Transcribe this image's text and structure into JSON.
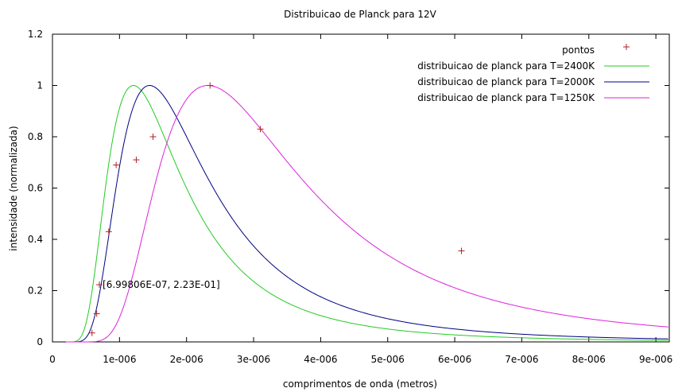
{
  "chart_data": {
    "type": "line",
    "title": "Distribuicao de Planck para 12V",
    "xlabel": "comprimentos de onda (metros)",
    "ylabel": "intensidade (normalizada)",
    "xlim": [
      0,
      9.2e-06
    ],
    "ylim": [
      0,
      1.2
    ],
    "xticks": [
      {
        "value": 0,
        "label": "0"
      },
      {
        "value": 1e-06,
        "label": "1e-006"
      },
      {
        "value": 2e-06,
        "label": "2e-006"
      },
      {
        "value": 3e-06,
        "label": "3e-006"
      },
      {
        "value": 4e-06,
        "label": "4e-006"
      },
      {
        "value": 5e-06,
        "label": "5e-006"
      },
      {
        "value": 6e-06,
        "label": "6e-006"
      },
      {
        "value": 7e-06,
        "label": "7e-006"
      },
      {
        "value": 8e-06,
        "label": "8e-006"
      },
      {
        "value": 9e-06,
        "label": "9e-006"
      }
    ],
    "yticks": [
      {
        "value": 0,
        "label": "0"
      },
      {
        "value": 0.2,
        "label": "0.2"
      },
      {
        "value": 0.4,
        "label": "0.4"
      },
      {
        "value": 0.6,
        "label": "0.6"
      },
      {
        "value": 0.8,
        "label": "0.8"
      },
      {
        "value": 1.0,
        "label": "1"
      },
      {
        "value": 1.2,
        "label": "1.2"
      }
    ],
    "grid": false,
    "legend_position": "top-right",
    "points": {
      "name": "pontos",
      "color": "#b22222",
      "marker": "plus",
      "x": [
        5.9e-07,
        6.6e-07,
        6.99806e-07,
        8.4e-07,
        9.5e-07,
        1.25e-06,
        1.5e-06,
        2.35e-06,
        3.1e-06,
        6.1e-06
      ],
      "y": [
        0.035,
        0.11,
        0.223,
        0.43,
        0.69,
        0.71,
        0.8,
        1.0,
        0.83,
        0.355
      ]
    },
    "series": [
      {
        "name": "distribuicao de planck para T=2400K",
        "temperature": 2400,
        "color": "#22cc22"
      },
      {
        "name": "distribuicao de planck para T=2000K",
        "temperature": 2000,
        "color": "#000080"
      },
      {
        "name": "distribuicao de planck para T=1250K",
        "temperature": 1250,
        "color": "#dd22dd"
      }
    ],
    "annotation": {
      "text": "[6.99806E-07, 2.23E-01]",
      "x": 6.99806e-07,
      "y": 0.223
    }
  }
}
